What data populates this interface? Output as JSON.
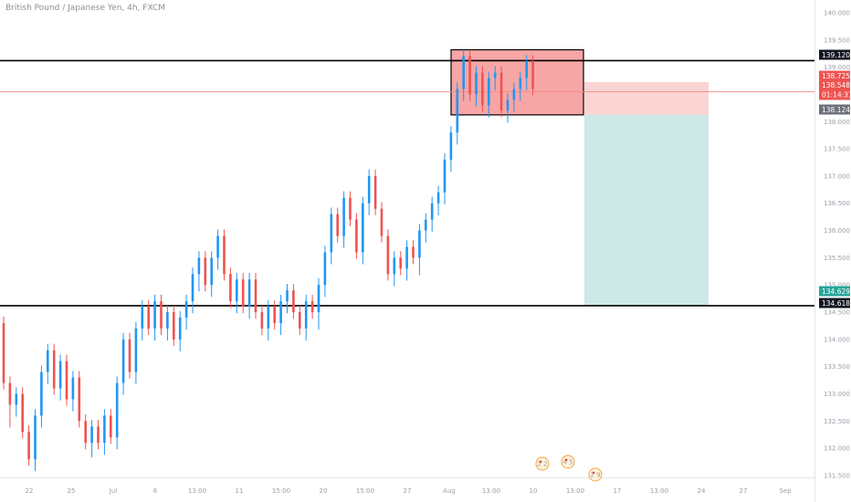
{
  "header": {
    "symbol_title": "British Pound / Japanese Yen, 4h, FXCM"
  },
  "colors": {
    "bull": "#2196f3",
    "bear": "#ef5350",
    "zone_fill": "#f7a6a6",
    "stop_fill": "#fbd4d4",
    "target_fill": "#cde9e6",
    "level_line": "#000000",
    "price_line": "#f28b82"
  },
  "chart_data": {
    "type": "candlestick",
    "timeframe": "4h",
    "ylim": [
      131.6,
      140.1
    ],
    "y_ticks": [
      "140.000",
      "139.500",
      "139.000",
      "138.500",
      "138.000",
      "137.500",
      "137.000",
      "136.500",
      "136.000",
      "135.500",
      "135.000",
      "134.500",
      "134.000",
      "133.500",
      "133.000",
      "132.500",
      "132.000",
      "131.500"
    ],
    "x_ticks": [
      "22",
      "25",
      "Jul",
      "6",
      "13:00",
      "11",
      "15:00",
      "20",
      "15:00",
      "27",
      "Aug",
      "13:00",
      "10",
      "13:00",
      "17",
      "13:00",
      "24",
      "27",
      "Sep"
    ],
    "levels": {
      "resistance": 139.12,
      "support": 134.618,
      "last_price": 138.548
    },
    "price_tags": [
      {
        "value": "139.120",
        "label": "139.120",
        "style": "level"
      },
      {
        "value": "138.725",
        "label": "138.725",
        "style": "stop"
      },
      {
        "value": "138.548",
        "label": "138.548",
        "sub": "01:14:31",
        "style": "last"
      },
      {
        "value": "138.124",
        "label": "138.124",
        "style": "entry"
      },
      {
        "value": "134.629",
        "label": "134.629",
        "style": "target"
      },
      {
        "value": "134.618",
        "label": "134.618",
        "style": "level"
      }
    ],
    "zone": {
      "top": 139.32,
      "bottom": 138.124
    },
    "position": {
      "entry": 138.124,
      "stop": 138.725,
      "target": 134.629,
      "side": "short"
    },
    "events": [
      {
        "label": "2 2"
      },
      {
        "label": "4 5"
      },
      {
        "label": "2 9"
      }
    ],
    "candles": [
      [
        134.3,
        134.0,
        133.2
      ],
      [
        133.2,
        132.5,
        132.8
      ],
      [
        132.8,
        132.7,
        133.0
      ],
      [
        133.0,
        132.9,
        132.3
      ],
      [
        132.3,
        132.2,
        131.8
      ],
      [
        131.8,
        131.7,
        132.6
      ],
      [
        132.6,
        132.5,
        133.4
      ],
      [
        133.4,
        133.3,
        133.8
      ],
      [
        133.8,
        133.6,
        133.1
      ],
      [
        133.1,
        133.0,
        133.6
      ],
      [
        133.6,
        133.4,
        132.9
      ],
      [
        132.9,
        132.8,
        133.3
      ],
      [
        133.3,
        133.1,
        132.5
      ],
      [
        132.5,
        132.2,
        132.1
      ],
      [
        132.1,
        131.95,
        132.4
      ],
      [
        132.4,
        132.3,
        132.1
      ],
      [
        132.1,
        132.0,
        132.6
      ],
      [
        132.6,
        132.5,
        132.2
      ],
      [
        132.2,
        132.1,
        133.2
      ],
      [
        133.2,
        133.1,
        134.0
      ],
      [
        134.0,
        133.8,
        133.4
      ],
      [
        133.4,
        133.3,
        134.2
      ],
      [
        134.2,
        134.1,
        134.6
      ],
      [
        134.6,
        134.5,
        134.2
      ],
      [
        134.2,
        134.1,
        134.7
      ],
      [
        134.7,
        134.6,
        134.2
      ],
      [
        134.2,
        134.1,
        134.5
      ],
      [
        134.5,
        134.4,
        134.0
      ],
      [
        134.0,
        133.9,
        134.4
      ],
      [
        134.4,
        134.3,
        134.7
      ],
      [
        134.7,
        134.6,
        135.2
      ],
      [
        135.2,
        135.0,
        135.5
      ],
      [
        135.5,
        135.3,
        135.0
      ],
      [
        135.0,
        134.9,
        135.5
      ],
      [
        135.5,
        135.4,
        135.9
      ],
      [
        135.9,
        135.7,
        135.2
      ],
      [
        135.2,
        135.0,
        134.7
      ],
      [
        134.7,
        134.6,
        135.1
      ],
      [
        135.1,
        135.0,
        134.6
      ],
      [
        134.6,
        134.5,
        135.1
      ],
      [
        135.1,
        135.0,
        134.5
      ],
      [
        134.5,
        134.4,
        134.2
      ],
      [
        134.2,
        134.1,
        134.6
      ],
      [
        134.6,
        134.5,
        134.3
      ],
      [
        134.3,
        134.2,
        134.7
      ],
      [
        134.7,
        134.6,
        134.9
      ],
      [
        134.9,
        134.8,
        134.5
      ],
      [
        134.5,
        134.4,
        134.2
      ],
      [
        134.2,
        134.1,
        134.7
      ],
      [
        134.7,
        134.6,
        134.5
      ],
      [
        134.5,
        134.3,
        135.0
      ],
      [
        135.0,
        134.9,
        135.6
      ],
      [
        135.6,
        135.5,
        136.3
      ],
      [
        136.3,
        136.2,
        135.9
      ],
      [
        135.9,
        135.8,
        136.6
      ],
      [
        136.6,
        136.5,
        136.2
      ],
      [
        136.2,
        136.0,
        135.6
      ],
      [
        135.6,
        135.5,
        136.5
      ],
      [
        136.5,
        136.4,
        137.0
      ],
      [
        137.0,
        136.9,
        136.4
      ],
      [
        136.4,
        136.2,
        135.9
      ],
      [
        135.9,
        135.7,
        135.2
      ],
      [
        135.2,
        135.1,
        135.5
      ],
      [
        135.5,
        135.4,
        135.3
      ],
      [
        135.3,
        135.2,
        135.7
      ],
      [
        135.7,
        135.6,
        135.5
      ],
      [
        135.5,
        135.3,
        136.0
      ],
      [
        136.0,
        135.9,
        136.2
      ],
      [
        136.2,
        136.1,
        136.5
      ],
      [
        136.5,
        136.4,
        136.7
      ],
      [
        136.7,
        136.6,
        137.3
      ],
      [
        137.3,
        137.2,
        137.8
      ],
      [
        137.8,
        137.7,
        138.6
      ],
      [
        138.6,
        138.5,
        139.2
      ],
      [
        139.2,
        139.0,
        138.5
      ],
      [
        138.5,
        138.4,
        138.9
      ],
      [
        138.9,
        138.8,
        138.3
      ],
      [
        138.3,
        138.2,
        138.8
      ],
      [
        138.8,
        138.7,
        138.9
      ],
      [
        138.9,
        138.8,
        138.2
      ],
      [
        138.2,
        138.1,
        138.4
      ],
      [
        138.4,
        138.3,
        138.6
      ],
      [
        138.6,
        138.5,
        138.8
      ],
      [
        138.8,
        138.7,
        139.1
      ],
      [
        139.1,
        139.0,
        138.6
      ]
    ]
  }
}
